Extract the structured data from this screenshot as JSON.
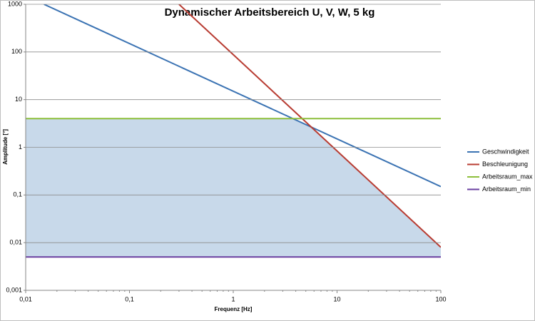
{
  "chart_data": {
    "type": "line",
    "title": "Dynamischer Arbeitsbereich U, V, W, 5 kg",
    "x_label": "Frequenz [Hz]",
    "y_label": "Amplitude [°]",
    "log_x": true,
    "log_y": true,
    "grid": true,
    "legend": "right",
    "shade": "#c8d9ea",
    "xlim": [
      0.01,
      100
    ],
    "ylim": [
      0.001,
      1000
    ],
    "xticks": [
      {
        "value": 0.01,
        "label": "0,01"
      },
      {
        "value": 0.1,
        "label": "0,1"
      },
      1,
      10,
      100
    ],
    "yticks": [
      {
        "value": 0.001,
        "label": "0,001"
      },
      {
        "value": 0.01,
        "label": "0,01"
      },
      {
        "value": 0.1,
        "label": "0,1"
      },
      1,
      10,
      100,
      1000
    ],
    "series": [
      {
        "name": "Geschwindigkeit",
        "color": "#3b73b3",
        "x": [
          0.015,
          100
        ],
        "values": [
          1000,
          0.15
        ]
      },
      {
        "name": "Beschleunigung",
        "color": "#b83c32",
        "x": [
          0.3,
          100
        ],
        "values": [
          1000,
          0.008
        ]
      },
      {
        "name": "Arbeitsraum_max",
        "color": "#8dbf3c",
        "x": [
          0.01,
          100
        ],
        "values": [
          4,
          4
        ]
      },
      {
        "name": "Arbeitsraum_min",
        "color": "#6a3fa0",
        "x": [
          0.01,
          100
        ],
        "values": [
          0.005,
          0.005
        ]
      }
    ]
  }
}
